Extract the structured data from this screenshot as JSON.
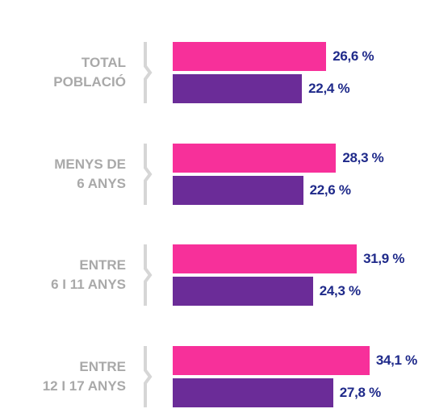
{
  "chart_data": {
    "type": "bar",
    "orientation": "horizontal",
    "categories": [
      "TOTAL\nPOBLACIÓ",
      "MENYS DE\n6 ANYS",
      "ENTRE\n6 I 11 ANYS",
      "ENTRE\n12 I 17 ANYS"
    ],
    "xlim": [
      0,
      40
    ],
    "series": [
      {
        "color": "#f7309a",
        "values": [
          26.6,
          28.3,
          31.9,
          34.1
        ],
        "value_labels": [
          "26,6 %",
          "28,3 %",
          "31,9 %",
          "34,1 %"
        ]
      },
      {
        "color": "#6b2c98",
        "values": [
          22.4,
          22.6,
          24.3,
          27.8
        ],
        "value_labels": [
          "22,4 %",
          "22,6 %",
          "24,3 %",
          "27,8 %"
        ]
      }
    ]
  }
}
